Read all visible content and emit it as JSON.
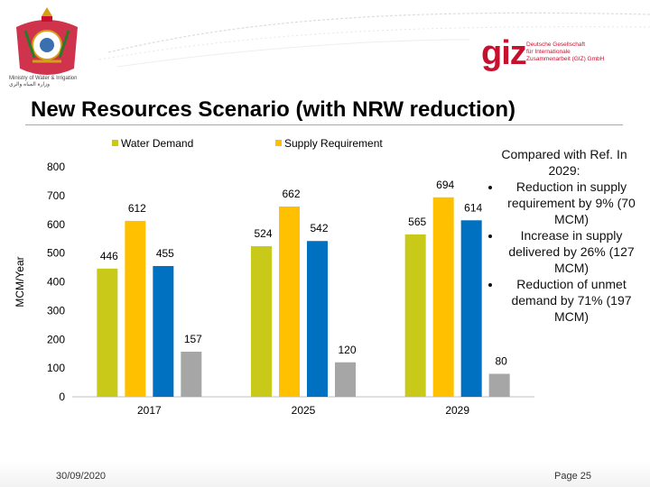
{
  "header": {
    "ministry_text": "Ministry of Water & Irrigation\nوزارة المياه والري",
    "partner_logo_text": "giz",
    "partner_subtext": "Deutsche Gesellschaft\nfür Internationale\nZusammenarbeit (GIZ) GmbH"
  },
  "slide": {
    "title": "New Resources Scenario (with NRW reduction)"
  },
  "note": {
    "heading": "Compared with Ref. In 2029:",
    "bullets": [
      "Reduction in supply requirement by 9% (70 MCM)",
      "Increase in supply delivered by 26% (127 MCM)",
      "Reduction of unmet demand by 71% (197 MCM)"
    ]
  },
  "footer": {
    "date": "30/09/2020",
    "page": "Page 25"
  },
  "chart_data": {
    "type": "bar",
    "categories": [
      "2017",
      "2025",
      "2029"
    ],
    "series": [
      {
        "name": "Water Demand",
        "values": [
          446,
          524,
          565
        ],
        "color": "#c9c91a",
        "show_in_legend": true
      },
      {
        "name": "Supply Requirement",
        "values": [
          612,
          662,
          694
        ],
        "color": "#ffc000",
        "show_in_legend": true
      },
      {
        "name": "",
        "values": [
          455,
          542,
          614
        ],
        "color": "#0070c0",
        "show_in_legend": false
      },
      {
        "name": "",
        "values": [
          157,
          120,
          80
        ],
        "color": "#a6a6a6",
        "show_in_legend": false
      }
    ],
    "ylabel": "MCM/Year",
    "ylim": [
      0,
      800
    ],
    "yticks": [
      0,
      100,
      200,
      300,
      400,
      500,
      600,
      700,
      800
    ],
    "grid": false,
    "legend_position": "top",
    "colors": {
      "axis": "#bfbfbf",
      "text": "#000000"
    }
  }
}
